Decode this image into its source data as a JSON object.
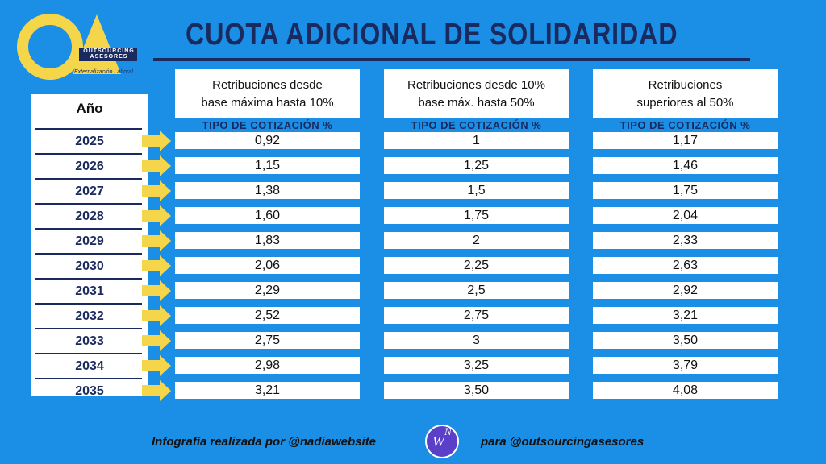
{
  "logo": {
    "line1": "OUTSOURCING",
    "line2": "ASESORES",
    "tagline": "Externalización Laboral"
  },
  "title": "CUOTA ADICIONAL DE SOLIDARIDAD",
  "table": {
    "year_header": "Año",
    "columns": [
      {
        "header": [
          "Retribuciones desde",
          "base máxima hasta 10%"
        ],
        "subheader": "TIPO DE COTIZACIÓN %"
      },
      {
        "header": [
          "Retribuciones desde  10%",
          "base máx. hasta 50%"
        ],
        "subheader": "TIPO DE COTIZACIÓN %"
      },
      {
        "header": [
          "Retribuciones",
          "superiores al 50%"
        ],
        "subheader": "TIPO DE COTIZACIÓN %"
      }
    ],
    "rows": [
      {
        "year": "2025",
        "values": [
          "0,92",
          "1",
          "1,17"
        ]
      },
      {
        "year": "2026",
        "values": [
          "1,15",
          "1,25",
          "1,46"
        ]
      },
      {
        "year": "2027",
        "values": [
          "1,38",
          "1,5",
          "1,75"
        ]
      },
      {
        "year": "2028",
        "values": [
          "1,60",
          "1,75",
          "2,04"
        ]
      },
      {
        "year": "2029",
        "values": [
          "1,83",
          "2",
          "2,33"
        ]
      },
      {
        "year": "2030",
        "values": [
          "2,06",
          "2,25",
          "2,63"
        ]
      },
      {
        "year": "2031",
        "values": [
          "2,29",
          "2,5",
          "2,92"
        ]
      },
      {
        "year": "2032",
        "values": [
          "2,52",
          "2,75",
          "3,21"
        ]
      },
      {
        "year": "2033",
        "values": [
          "2,75",
          "3",
          "3,50"
        ]
      },
      {
        "year": "2034",
        "values": [
          "2,98",
          "3,25",
          "3,79"
        ]
      },
      {
        "year": "2035",
        "values": [
          "3,21",
          "3,50",
          "4,08"
        ]
      }
    ]
  },
  "footer": {
    "left": "Infografía realizada por @nadiawebsite",
    "right": "para @outsourcingasesores",
    "badge_w": "W",
    "badge_n": "N"
  }
}
